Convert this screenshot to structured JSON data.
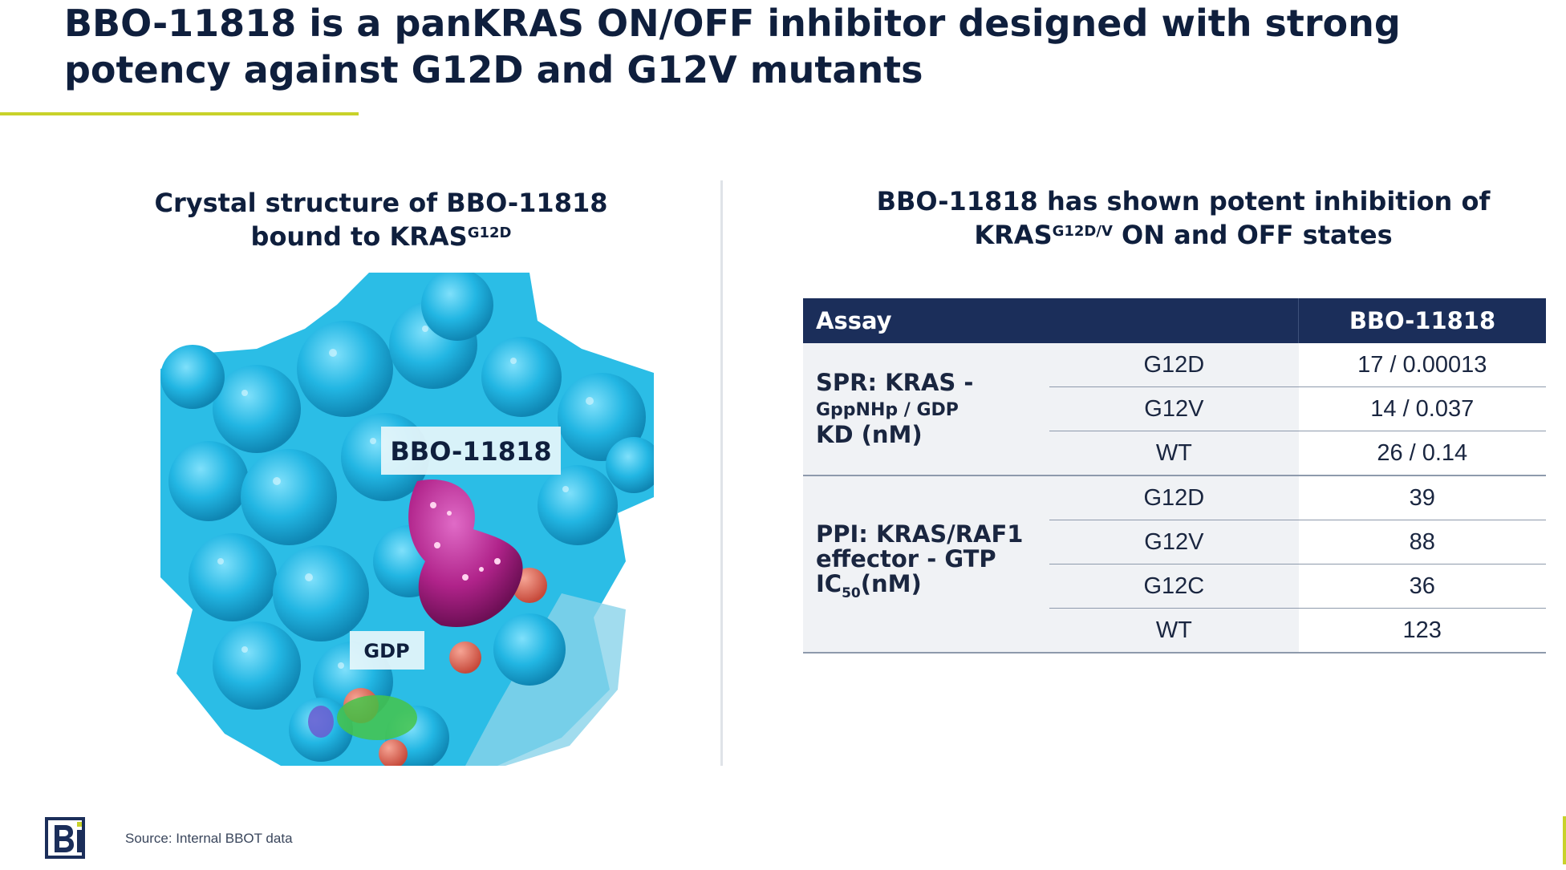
{
  "title": {
    "line1": "BBO-11818 is a panKRAS ON/OFF inhibitor designed with strong",
    "line2": "potency against G12D and G12V mutants"
  },
  "left_panel": {
    "heading_line1": "Crystal structure of BBO-11818",
    "heading_line2": "bound to KRAS",
    "heading_sup": "G12D",
    "labels": {
      "ligand": "BBO-11818",
      "cofactor": "GDP"
    }
  },
  "right_panel": {
    "heading_line1": "BBO-11818 has shown potent inhibition of",
    "heading_pre": "KRAS",
    "heading_sup": "G12D/V",
    "heading_post": " ON and OFF states"
  },
  "table": {
    "header_assay": "Assay",
    "header_compound": "BBO-11818",
    "spr": {
      "line1": "SPR: KRAS -",
      "line2": "GppNHp / GDP",
      "line3": "KD (nM)",
      "rows": [
        {
          "mutant": "G12D",
          "value": "17 / 0.00013"
        },
        {
          "mutant": "G12V",
          "value": "14 / 0.037"
        },
        {
          "mutant": "WT",
          "value": "26 / 0.14"
        }
      ]
    },
    "ppi": {
      "line1": "PPI: KRAS/RAF1",
      "line2": "effector - GTP",
      "line3_pre": "IC",
      "line3_sub": "50",
      "line3_post": "(nM)",
      "rows": [
        {
          "mutant": "G12D",
          "value": "39"
        },
        {
          "mutant": "G12V",
          "value": "88"
        },
        {
          "mutant": "G12C",
          "value": "36"
        },
        {
          "mutant": "WT",
          "value": "123"
        }
      ]
    }
  },
  "footer": {
    "source": "Source: Internal BBOT data",
    "logo": "bbot-logo"
  },
  "colors": {
    "navy": "#1b2e5a",
    "accent": "#c8d22a",
    "protein": "#2bbde6",
    "ligand": "#b0238a"
  }
}
